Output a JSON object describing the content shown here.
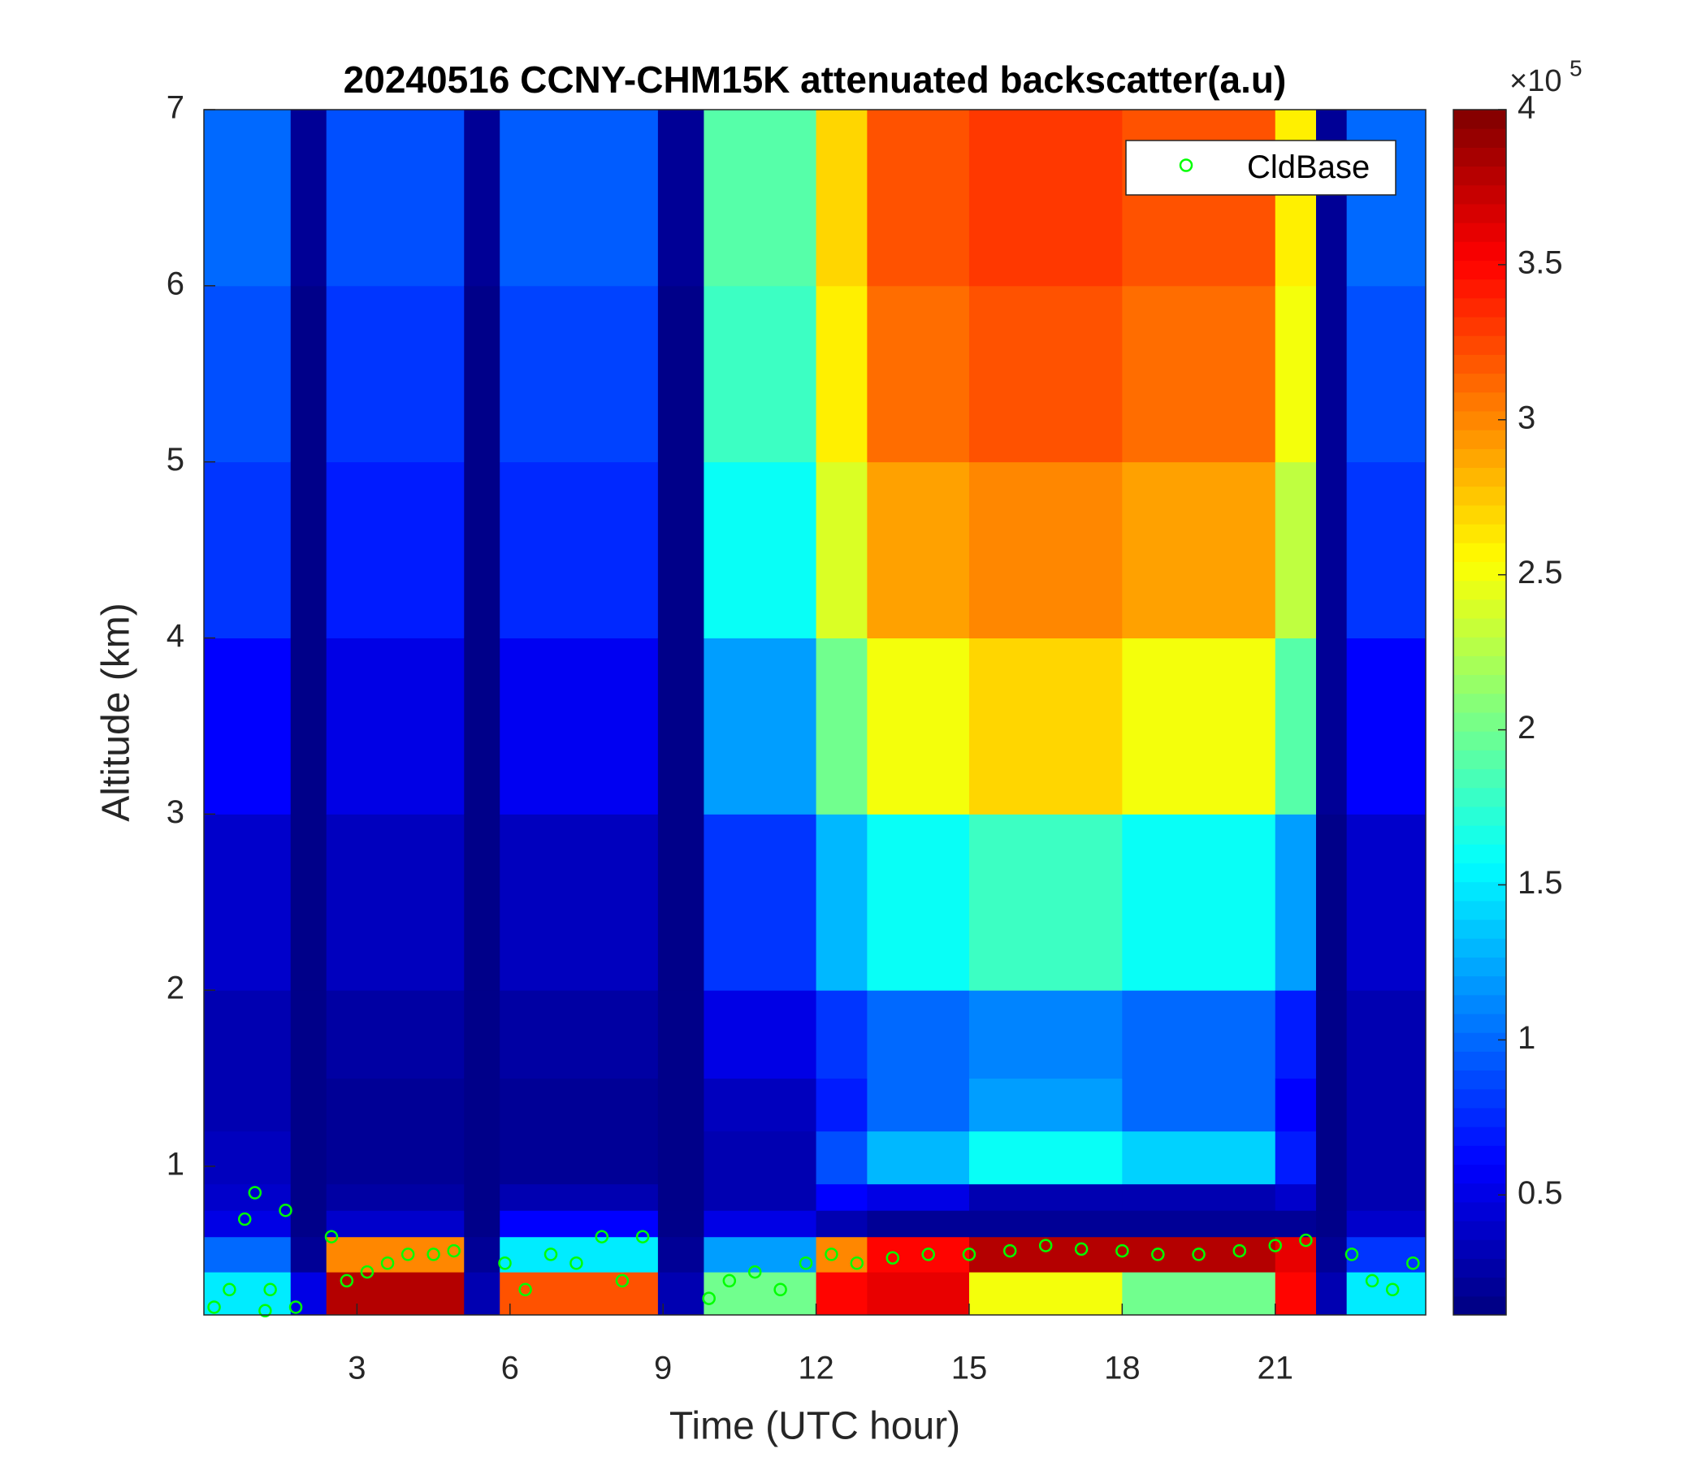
{
  "chart_data": {
    "type": "heatmap",
    "title": "20240516 CCNY-CHM15K attenuated backscatter(a.u)",
    "x_label": "Time (UTC hour)",
    "y_label": "Altitude (km)",
    "xlim": [
      0,
      23.95
    ],
    "ylim": [
      0.156,
      7
    ],
    "xticks": [
      3,
      6,
      9,
      12,
      15,
      18,
      21
    ],
    "yticks": [
      1,
      2,
      3,
      4,
      5,
      6,
      7
    ],
    "colormap": "jet",
    "colorbar": {
      "clim": [
        0.113,
        4
      ],
      "ticks": [
        0.5,
        1,
        1.5,
        2,
        2.5,
        3,
        3.5,
        4
      ],
      "multiplier": "×10",
      "exponent": "5"
    },
    "heatmap": {
      "x_edges": [
        0,
        1.7,
        2.4,
        5.1,
        5.8,
        8.9,
        9.8,
        12,
        13,
        15,
        18,
        21,
        21.8,
        22.4,
        23.95
      ],
      "y_edges": [
        0.156,
        0.4,
        0.6,
        0.75,
        0.9,
        1.2,
        1.5,
        2,
        3,
        4,
        5,
        6,
        7
      ],
      "values": [
        [
          1.5,
          1.0,
          0.5,
          0.4,
          0.35,
          0.3,
          0.3,
          0.4,
          0.6,
          0.8,
          0.9,
          1.0
        ],
        [
          0.5,
          0.2,
          0.15,
          0.15,
          0.15,
          0.15,
          0.15,
          0.15,
          0.15,
          0.15,
          0.15,
          0.2
        ],
        [
          3.8,
          3.0,
          0.4,
          0.25,
          0.2,
          0.2,
          0.25,
          0.35,
          0.5,
          0.7,
          0.8,
          0.9
        ],
        [
          0.3,
          0.2,
          0.15,
          0.15,
          0.15,
          0.15,
          0.15,
          0.15,
          0.15,
          0.15,
          0.15,
          0.2
        ],
        [
          3.2,
          1.5,
          0.6,
          0.3,
          0.2,
          0.2,
          0.25,
          0.35,
          0.55,
          0.75,
          0.85,
          0.95
        ],
        [
          0.3,
          0.2,
          0.15,
          0.15,
          0.15,
          0.15,
          0.15,
          0.15,
          0.15,
          0.15,
          0.15,
          0.2
        ],
        [
          2.0,
          1.2,
          0.5,
          0.3,
          0.3,
          0.35,
          0.5,
          0.8,
          1.2,
          1.6,
          1.8,
          1.9
        ],
        [
          3.5,
          3.0,
          0.3,
          0.6,
          0.9,
          0.7,
          0.8,
          1.3,
          2.0,
          2.4,
          2.6,
          2.7
        ],
        [
          3.6,
          3.5,
          0.2,
          0.5,
          1.3,
          1.0,
          1.0,
          1.6,
          2.5,
          2.9,
          3.1,
          3.2
        ],
        [
          2.5,
          3.8,
          0.2,
          0.3,
          1.6,
          1.2,
          1.1,
          1.8,
          2.7,
          3.0,
          3.2,
          3.3
        ],
        [
          2.0,
          3.8,
          0.2,
          0.3,
          1.4,
          1.0,
          1.0,
          1.6,
          2.5,
          2.9,
          3.1,
          3.2
        ],
        [
          3.5,
          3.6,
          0.2,
          0.4,
          0.7,
          0.6,
          0.7,
          1.2,
          1.9,
          2.3,
          2.5,
          2.6
        ],
        [
          0.3,
          0.2,
          0.15,
          0.15,
          0.15,
          0.15,
          0.15,
          0.15,
          0.2,
          0.2,
          0.2,
          0.2
        ],
        [
          1.5,
          0.8,
          0.4,
          0.3,
          0.3,
          0.3,
          0.3,
          0.4,
          0.6,
          0.8,
          0.9,
          1.0
        ]
      ]
    },
    "series": [
      {
        "name": "CldBase",
        "color": "#00ff00",
        "x": [
          0.2,
          0.5,
          0.8,
          1.0,
          1.2,
          1.3,
          1.6,
          1.8,
          2.5,
          2.8,
          3.2,
          3.6,
          4.0,
          4.5,
          4.9,
          5.9,
          6.3,
          6.8,
          7.3,
          7.8,
          8.2,
          8.6,
          9.9,
          10.3,
          10.8,
          11.3,
          11.8,
          12.3,
          12.8,
          13.5,
          14.2,
          15.0,
          15.8,
          16.5,
          17.2,
          18.0,
          18.7,
          19.5,
          20.3,
          21.0,
          21.6,
          22.5,
          22.9,
          23.3,
          23.7
        ],
        "y": [
          0.2,
          0.3,
          0.7,
          0.85,
          0.18,
          0.3,
          0.75,
          0.2,
          0.6,
          0.35,
          0.4,
          0.45,
          0.5,
          0.5,
          0.52,
          0.45,
          0.3,
          0.5,
          0.45,
          0.6,
          0.35,
          0.6,
          0.25,
          0.35,
          0.4,
          0.3,
          0.45,
          0.5,
          0.45,
          0.48,
          0.5,
          0.5,
          0.52,
          0.55,
          0.53,
          0.52,
          0.5,
          0.5,
          0.52,
          0.55,
          0.58,
          0.5,
          0.35,
          0.3,
          0.45
        ]
      }
    ],
    "legend": "upper right"
  }
}
